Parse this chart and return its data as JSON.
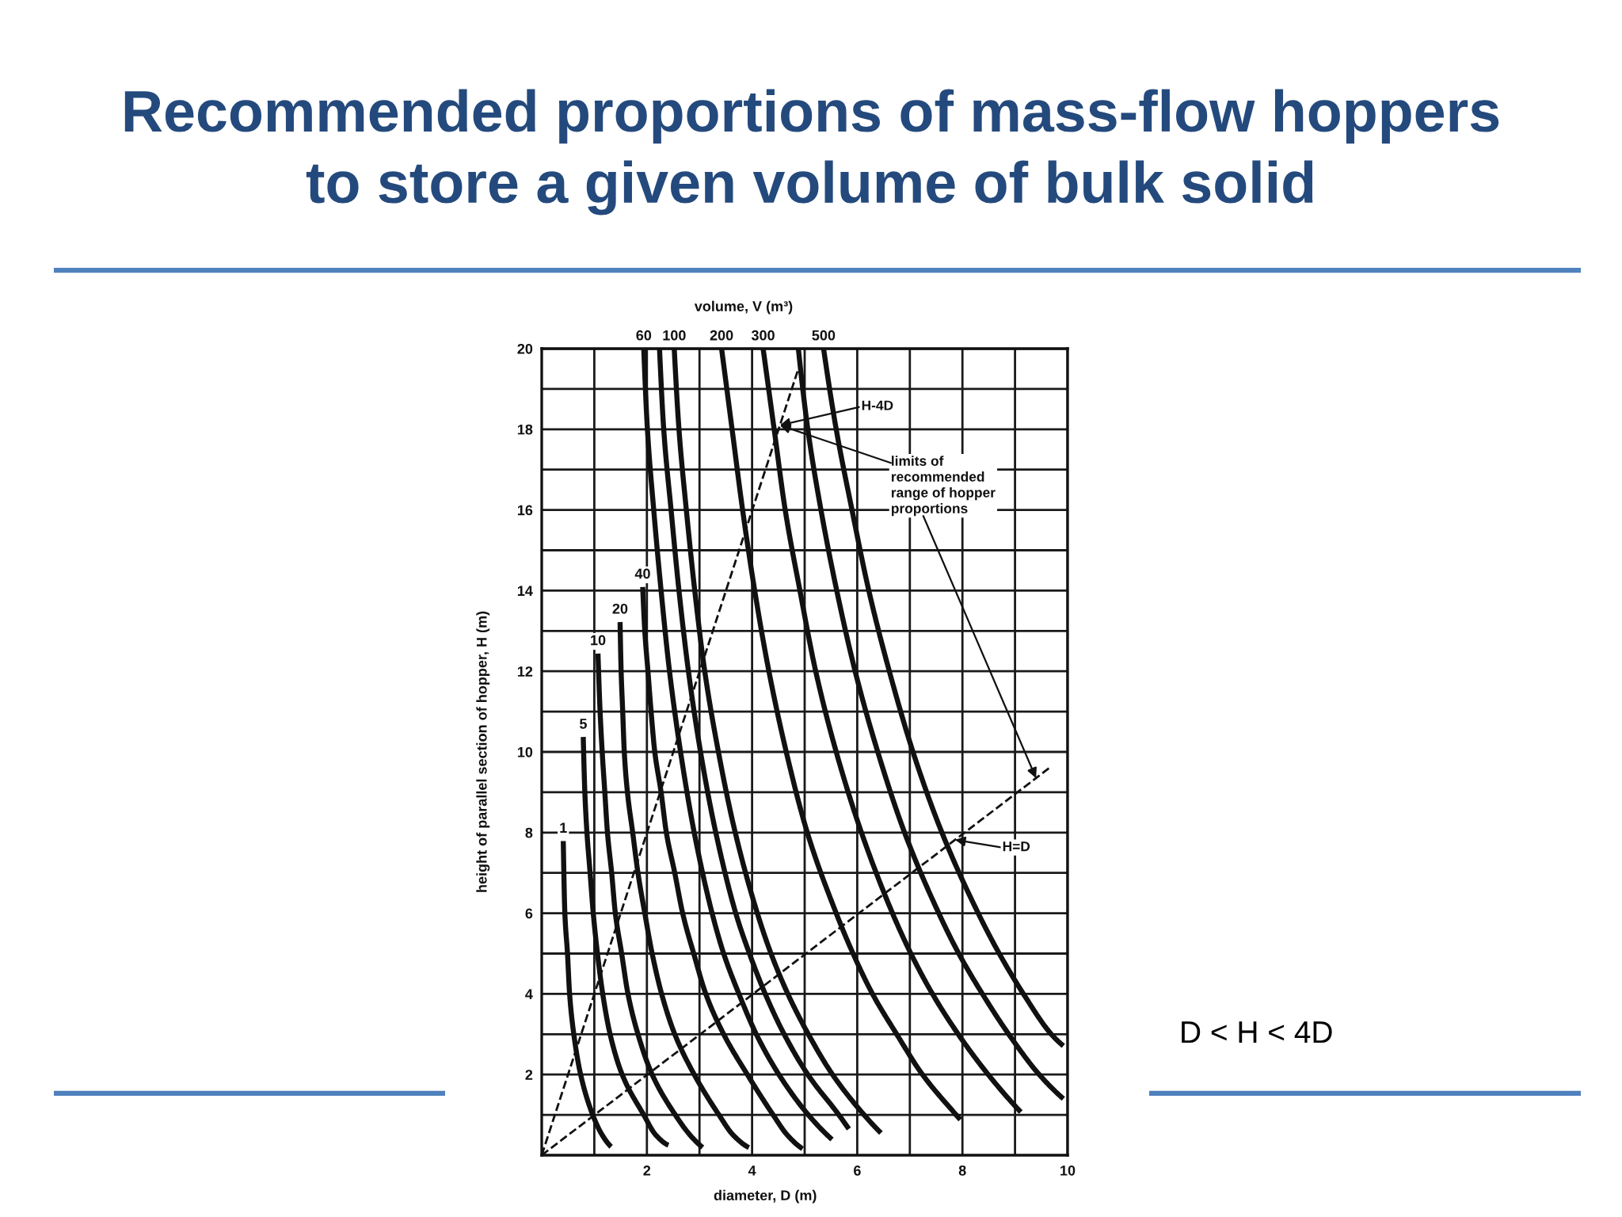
{
  "chart_data": {
    "type": "line",
    "title": "Recommended proportions of mass-flow hoppers\nto store a given volume of bulk solid",
    "xlabel": "diameter, D (m)",
    "ylabel": "height of parallel section of hopper, H (m)",
    "xlim": [
      0,
      10
    ],
    "ylim": [
      0,
      20
    ],
    "xticks": [
      {
        "value": 1,
        "label": null
      },
      2,
      {
        "value": 3,
        "label": null
      },
      4,
      {
        "value": 5,
        "label": null
      },
      6,
      {
        "value": 7,
        "label": null
      },
      8,
      {
        "value": 9,
        "label": null
      },
      10
    ],
    "yticks": [
      {
        "value": 1,
        "label": null
      },
      2,
      {
        "value": 3,
        "label": null
      },
      4,
      {
        "value": 5,
        "label": null
      },
      6,
      {
        "value": 7,
        "label": null
      },
      8,
      {
        "value": 9,
        "label": null
      },
      10,
      {
        "value": 11,
        "label": null
      },
      12,
      {
        "value": 13,
        "label": null
      },
      14,
      {
        "value": 15,
        "label": null
      },
      16,
      {
        "value": 17,
        "label": null
      },
      18,
      {
        "value": 19,
        "label": null
      },
      20
    ],
    "grid": true,
    "line_style": "solid",
    "series": [
      {
        "name": "1",
        "color": "#111111",
        "x": [
          0.41,
          0.44,
          0.49,
          0.53,
          0.61,
          0.74,
          0.97,
          1.15,
          1.32
        ],
        "values": [
          7.79,
          6.0,
          5.0,
          4.0,
          3.0,
          2.0,
          1.0,
          0.5,
          0.21
        ]
      },
      {
        "name": "5",
        "color": "#111111",
        "x": [
          0.79,
          0.82,
          0.86,
          0.92,
          0.98,
          1.06,
          1.16,
          1.3,
          1.53,
          1.94,
          2.17,
          2.41
        ],
        "values": [
          10.37,
          9.0,
          8.0,
          7.0,
          6.0,
          5.0,
          4.0,
          3.0,
          2.0,
          1.0,
          0.5,
          0.25
        ]
      },
      {
        "name": "10",
        "color": "#111111",
        "x": [
          1.07,
          1.11,
          1.15,
          1.2,
          1.25,
          1.33,
          1.4,
          1.52,
          1.64,
          1.83,
          2.1,
          2.54,
          2.82,
          3.06
        ],
        "values": [
          12.44,
          11.0,
          10.0,
          9.0,
          8.0,
          7.0,
          6.0,
          5.0,
          4.0,
          3.0,
          2.0,
          1.0,
          0.5,
          0.19
        ]
      },
      {
        "name": "20",
        "color": "#111111",
        "x": [
          1.49,
          1.51,
          1.54,
          1.57,
          1.63,
          1.73,
          1.83,
          1.96,
          2.1,
          2.28,
          2.53,
          2.9,
          3.37,
          3.64,
          3.94
        ],
        "values": [
          13.22,
          12.0,
          11.0,
          10.0,
          9.0,
          8.0,
          7.0,
          6.0,
          5.0,
          4.0,
          3.0,
          2.0,
          1.0,
          0.5,
          0.19
        ]
      },
      {
        "name": "40",
        "color": "#111111",
        "x": [
          1.92,
          1.96,
          2.02,
          2.08,
          2.15,
          2.27,
          2.37,
          2.53,
          2.68,
          2.89,
          3.12,
          3.46,
          3.91,
          4.4,
          4.67,
          4.96
        ],
        "values": [
          14.09,
          13.0,
          12.0,
          11.0,
          10.0,
          9.0,
          8.0,
          7.0,
          6.0,
          5.0,
          4.0,
          3.0,
          2.0,
          1.0,
          0.5,
          0.16
        ]
      },
      {
        "name": "60",
        "color": "#111111",
        "x": [
          1.94,
          2.01,
          2.13,
          2.27,
          2.43,
          2.64,
          2.9,
          3.24,
          3.46,
          3.75,
          4.08,
          4.51,
          5.07,
          5.52
        ],
        "values": [
          20.0,
          18.0,
          16.0,
          14.0,
          12.0,
          10.0,
          8.0,
          6.0,
          5.0,
          4.0,
          3.0,
          2.0,
          1.0,
          0.39
        ]
      },
      {
        "color": "#111111",
        "x": [
          2.24,
          2.32,
          2.46,
          2.61,
          2.79,
          3.02,
          3.31,
          3.69,
          3.95,
          4.25,
          4.61,
          5.06,
          5.65,
          5.84
        ],
        "values": [
          20.0,
          18.0,
          16.0,
          14.0,
          12.0,
          10.0,
          8.0,
          6.0,
          5.0,
          4.0,
          3.0,
          2.0,
          1.0,
          0.65
        ]
      },
      {
        "name": "100",
        "color": "#111111",
        "x": [
          2.52,
          2.61,
          2.75,
          2.91,
          3.1,
          3.36,
          3.68,
          4.1,
          4.36,
          4.68,
          5.07,
          5.53,
          6.13,
          6.45
        ],
        "values": [
          20.0,
          18.0,
          16.0,
          14.0,
          12.0,
          10.0,
          8.0,
          6.0,
          5.0,
          4.0,
          3.0,
          2.0,
          1.0,
          0.55
        ]
      },
      {
        "name": "200",
        "color": "#111111",
        "x": [
          3.42,
          3.62,
          3.82,
          4.05,
          4.32,
          4.65,
          5.05,
          5.6,
          5.92,
          6.29,
          6.75,
          7.24,
          7.88,
          7.96
        ],
        "values": [
          20.0,
          18.0,
          16.0,
          14.0,
          12.0,
          10.0,
          8.0,
          6.0,
          5.0,
          4.0,
          3.0,
          2.0,
          1.0,
          0.88
        ]
      },
      {
        "name": "300",
        "color": "#111111",
        "x": [
          4.21,
          4.42,
          4.63,
          4.91,
          5.21,
          5.6,
          6.08,
          6.67,
          7.02,
          7.43,
          7.92,
          8.49,
          9.11
        ],
        "values": [
          20.0,
          18.0,
          16.0,
          14.0,
          12.0,
          10.0,
          8.0,
          6.0,
          5.0,
          4.0,
          3.0,
          2.0,
          1.07
        ]
      },
      {
        "color": "#111111",
        "x": [
          4.88,
          5.06,
          5.31,
          5.61,
          5.96,
          6.39,
          6.9,
          7.55,
          7.93,
          8.38,
          8.88,
          9.46,
          9.92
        ],
        "values": [
          20.0,
          18.0,
          16.0,
          14.0,
          12.0,
          10.0,
          8.0,
          6.0,
          5.0,
          4.0,
          3.0,
          2.0,
          1.4
        ]
      },
      {
        "name": "500",
        "color": "#111111",
        "x": [
          5.36,
          5.6,
          5.9,
          6.22,
          6.61,
          7.06,
          7.61,
          8.3,
          8.7,
          9.16,
          9.69,
          9.92
        ],
        "values": [
          20.0,
          18.0,
          16.0,
          14.0,
          12.0,
          10.0,
          8.0,
          6.0,
          5.0,
          4.0,
          3.0,
          2.71
        ]
      },
      {
        "color": "#111111",
        "line_style": "dashed",
        "x": [
          0,
          4.88
        ],
        "values": [
          0,
          19.5
        ]
      },
      {
        "color": "#111111",
        "line_style": "dashed",
        "x": [
          0,
          9.65
        ],
        "values": [
          0,
          9.6
        ]
      }
    ],
    "annotations": [
      "volume, V (m³)",
      {
        "text": "H-4D",
        "x": 4.53,
        "y": 18.1
      },
      {
        "text": "limits of\nrecommended\nrange of hopper\nproportions",
        "x": 9.4,
        "y": 9.35
      },
      {
        "text": "H=D",
        "x": 7.86,
        "y": 7.82
      },
      "D < H < 4D"
    ]
  }
}
